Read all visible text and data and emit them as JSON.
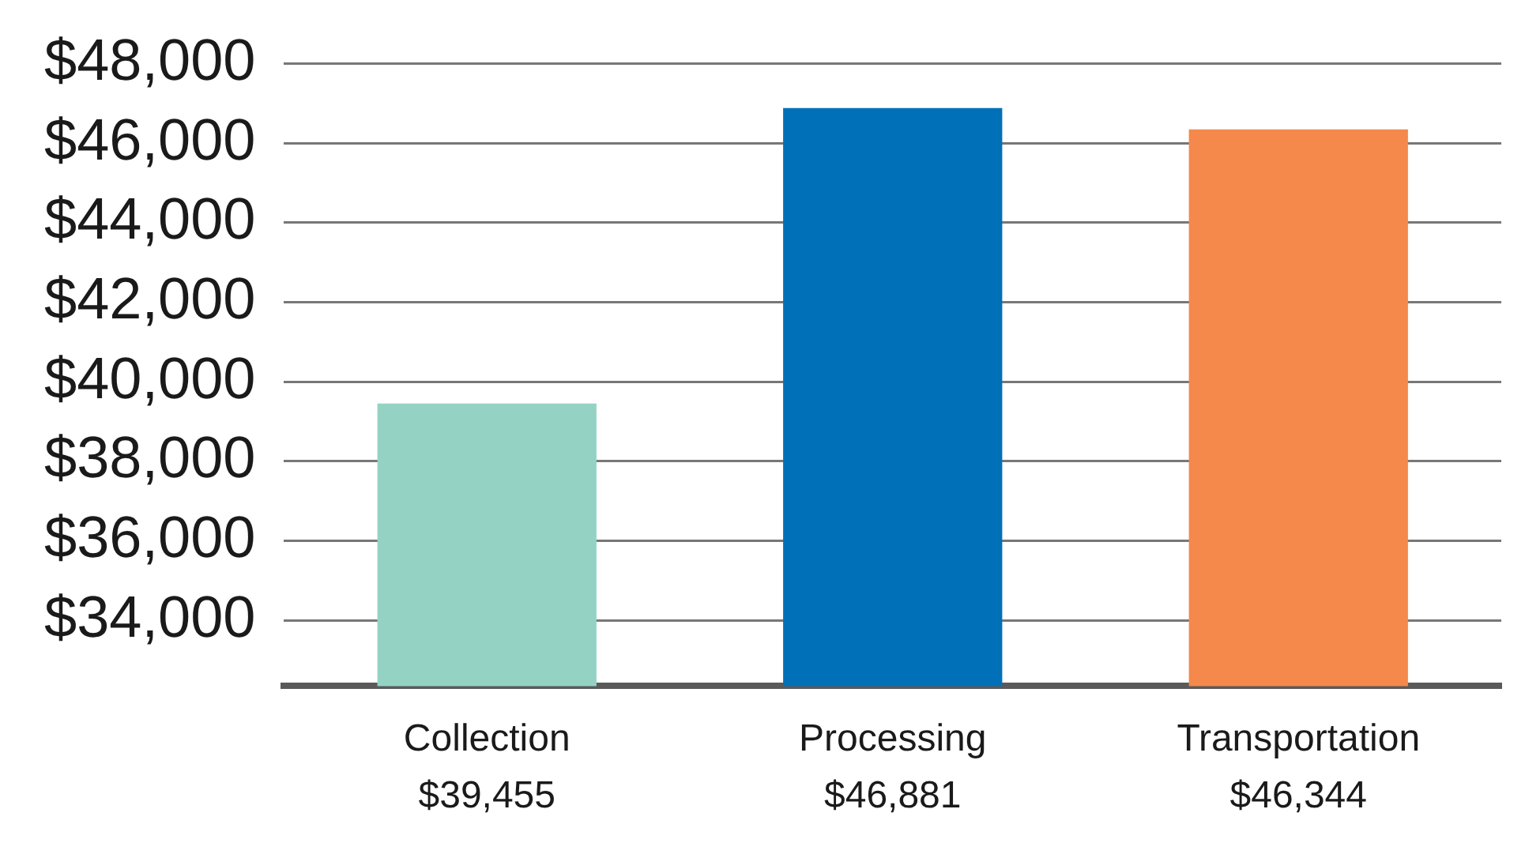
{
  "chart_data": {
    "type": "bar",
    "categories": [
      "Collection",
      "Processing",
      "Transportation"
    ],
    "values": [
      39455,
      46881,
      46344
    ],
    "colors": [
      "#94d3c3",
      "#0070b8",
      "#f4894b"
    ],
    "value_labels": [
      "$39,455",
      "$46,881",
      "$46,344"
    ],
    "ylim": [
      32350,
      48000
    ],
    "yticks": [
      {
        "value": 34000,
        "label": "$34,000"
      },
      {
        "value": 36000,
        "label": "$36,000"
      },
      {
        "value": 38000,
        "label": "$38,000"
      },
      {
        "value": 40000,
        "label": "$40,000"
      },
      {
        "value": 42000,
        "label": "$42,000"
      },
      {
        "value": 44000,
        "label": "$44,000"
      },
      {
        "value": 46000,
        "label": "$46,000"
      },
      {
        "value": 48000,
        "label": "$48,000"
      }
    ],
    "grid": "y",
    "legend": false
  }
}
